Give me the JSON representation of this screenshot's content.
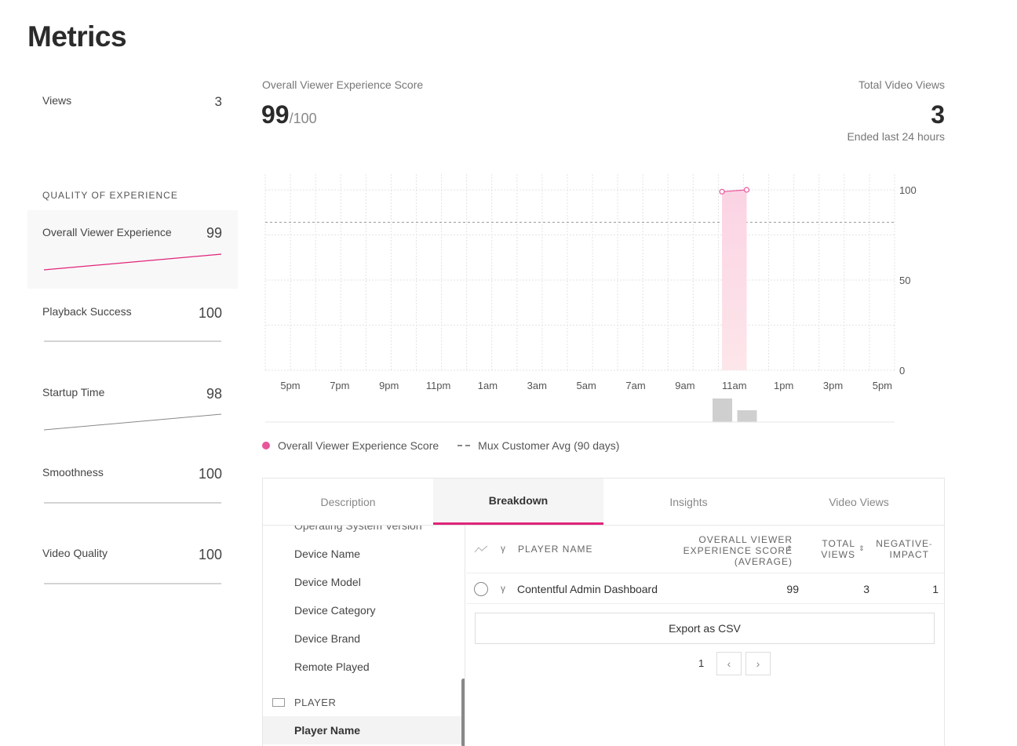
{
  "page": {
    "title": "Metrics"
  },
  "sidebar": {
    "views": {
      "label": "Views",
      "value": "3"
    },
    "section_label": "QUALITY OF EXPERIENCE",
    "metrics": [
      {
        "label": "Overall Viewer Experience",
        "value": "99"
      },
      {
        "label": "Playback Success",
        "value": "100"
      },
      {
        "label": "Startup Time",
        "value": "98"
      },
      {
        "label": "Smoothness",
        "value": "100"
      },
      {
        "label": "Video Quality",
        "value": "100"
      }
    ]
  },
  "summary": {
    "score_label": "Overall Viewer Experience Score",
    "score_value": "99",
    "score_denominator": "/100",
    "views_label": "Total Video Views",
    "views_value": "3",
    "views_sub": "Ended last 24 hours"
  },
  "chart_data": {
    "type": "line",
    "x": [
      "5pm",
      "7pm",
      "9pm",
      "11pm",
      "1am",
      "3am",
      "5am",
      "7am",
      "9am",
      "11am",
      "1pm",
      "3pm",
      "5pm"
    ],
    "ylim": [
      0,
      100
    ],
    "yticks": [
      "100",
      "50",
      "0"
    ],
    "series": [
      {
        "name": "Overall Viewer Experience Score",
        "points": [
          {
            "x": "10:30am",
            "y": 99
          },
          {
            "x": "11:30am",
            "y": 100
          }
        ],
        "color": "#e8559a"
      },
      {
        "name": "Mux Customer Avg (90 days)",
        "constant": 82,
        "style": "dashed",
        "color": "#999999"
      }
    ],
    "views_bars": [
      {
        "x": "10:30am",
        "value": 2
      },
      {
        "x": "11:30am",
        "value": 1
      }
    ],
    "grid": true
  },
  "legend": {
    "series_label": "Overall Viewer Experience Score",
    "avg_label": "Mux Customer Avg (90 days)"
  },
  "tabs": [
    {
      "label": "Description"
    },
    {
      "label": "Breakdown"
    },
    {
      "label": "Insights"
    },
    {
      "label": "Video Views"
    }
  ],
  "dimensions": {
    "partial_item": "Operating System Version",
    "items": [
      "Device Name",
      "Device Model",
      "Device Category",
      "Device Brand",
      "Remote Played"
    ],
    "section": "PLAYER",
    "selected": "Player Name"
  },
  "table": {
    "headers": {
      "player_name": "PLAYER NAME",
      "score_line1": "OVERALL VIEWER",
      "score_line2": "EXPERIENCE SCORE",
      "score_line3": "(AVERAGE)",
      "views_line1": "TOTAL",
      "views_line2": "VIEWS",
      "impact_line1": "NEGATIVE",
      "impact_line2": "IMPACT"
    },
    "rows": [
      {
        "name": "Contentful Admin Dashboard",
        "score": "99",
        "views": "3",
        "impact": "1"
      }
    ],
    "export_label": "Export as CSV",
    "page": "1"
  },
  "colors": {
    "accent": "#e0247a",
    "series": "#e8559a"
  }
}
